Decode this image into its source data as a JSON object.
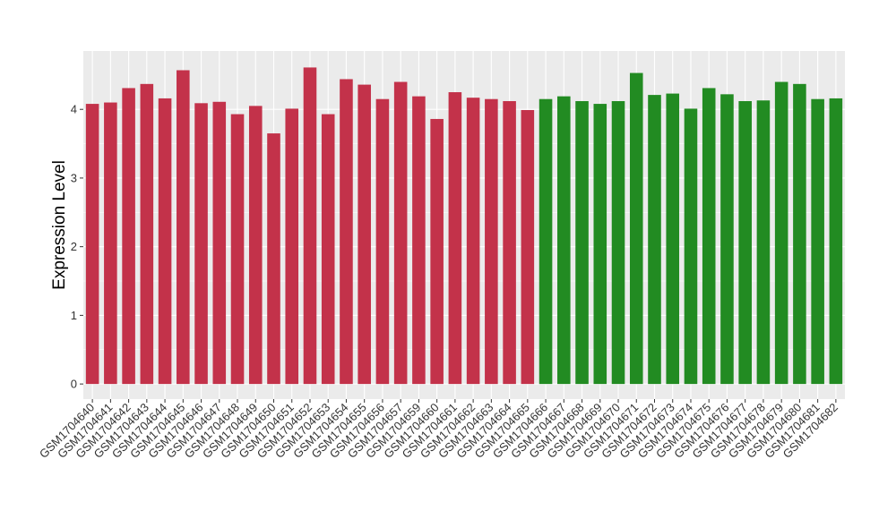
{
  "chart_data": {
    "type": "bar",
    "title": "",
    "xlabel": "",
    "ylabel": "Expression Level",
    "ylim": [
      -0.22,
      4.85
    ],
    "yticks": [
      0,
      1,
      2,
      3,
      4
    ],
    "grid": true,
    "background_color": "#ebebeb",
    "categories": [
      "GSM1704640",
      "GSM1704641",
      "GSM1704642",
      "GSM1704643",
      "GSM1704644",
      "GSM1704645",
      "GSM1704646",
      "GSM1704647",
      "GSM1704648",
      "GSM1704649",
      "GSM1704650",
      "GSM1704651",
      "GSM1704652",
      "GSM1704653",
      "GSM1704654",
      "GSM1704655",
      "GSM1704656",
      "GSM1704657",
      "GSM1704659",
      "GSM1704660",
      "GSM1704661",
      "GSM1704662",
      "GSM1704663",
      "GSM1704664",
      "GSM1704665",
      "GSM1704666",
      "GSM1704667",
      "GSM1704668",
      "GSM1704669",
      "GSM1704670",
      "GSM1704671",
      "GSM1704672",
      "GSM1704673",
      "GSM1704674",
      "GSM1704675",
      "GSM1704676",
      "GSM1704677",
      "GSM1704678",
      "GSM1704679",
      "GSM1704680",
      "GSM1704681",
      "GSM1704682"
    ],
    "values": [
      4.08,
      4.1,
      4.31,
      4.37,
      4.16,
      4.57,
      4.09,
      4.11,
      3.93,
      4.05,
      3.65,
      4.01,
      4.61,
      3.93,
      4.44,
      4.36,
      4.15,
      4.4,
      4.19,
      3.86,
      4.25,
      4.17,
      4.15,
      4.12,
      3.99,
      4.15,
      4.19,
      4.12,
      4.08,
      4.12,
      4.53,
      4.21,
      4.23,
      4.01,
      4.31,
      4.22,
      4.12,
      4.13,
      4.4,
      4.37,
      4.15,
      4.16
    ],
    "groups": [
      {
        "color": "#c3324a",
        "count": 25
      },
      {
        "color": "#228b22",
        "count": 17
      }
    ]
  }
}
